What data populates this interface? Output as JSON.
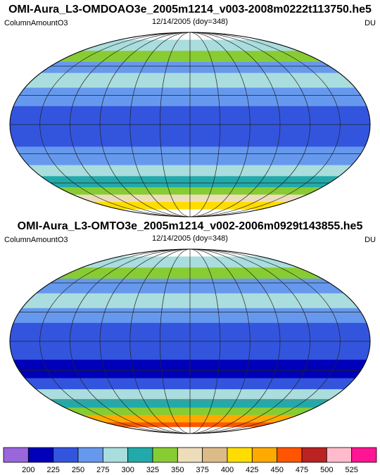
{
  "panels": [
    {
      "title": "OMI-Aura_L3-OMDOAO3e_2005m1214_v003-2008m0222t113750.he5",
      "variable": "ColumnAmountO3",
      "date": "12/14/2005 (doy=348)",
      "units": "DU"
    },
    {
      "title": "OMI-Aura_L3-OMTO3e_2005m1214_v002-2006m0929t143855.he5",
      "variable": "ColumnAmountO3",
      "date": "12/14/2005 (doy=348)",
      "units": "DU"
    }
  ],
  "colorbar": {
    "colors": [
      "#9966dd",
      "#0000bb",
      "#3355dd",
      "#6699ee",
      "#aadddd",
      "#22aaaa",
      "#88cc33",
      "#eeddbb",
      "#ddbb88",
      "#ffdd00",
      "#ffaa00",
      "#ff5500",
      "#bb2222",
      "#ffbbcc",
      "#ff1493"
    ],
    "labels": [
      200,
      225,
      250,
      275,
      300,
      325,
      350,
      375,
      400,
      425,
      450,
      475,
      500,
      525
    ]
  }
}
